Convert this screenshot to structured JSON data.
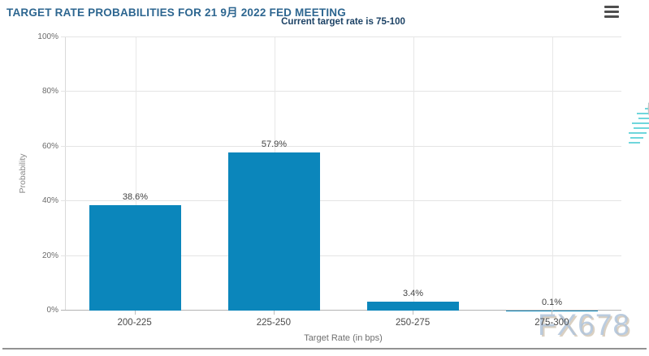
{
  "header": {
    "title": "TARGET RATE PROBABILITIES FOR 21 9月 2022 FED MEETING",
    "menu_icon": "hamburger-menu"
  },
  "chart_data": {
    "type": "bar",
    "title": "TARGET RATE PROBABILITIES FOR 21 9月 2022 FED MEETING",
    "subtitle": "Current target rate is 75-100",
    "xlabel": "Target Rate (in bps)",
    "ylabel": "Probability",
    "categories": [
      "200-225",
      "225-250",
      "250-275",
      "275-300"
    ],
    "values": [
      38.6,
      57.9,
      3.4,
      0.1
    ],
    "value_labels": [
      "38.6%",
      "57.9%",
      "3.4%",
      "0.1%"
    ],
    "ylim": [
      0,
      100
    ],
    "ytick_labels": [
      "0%",
      "20%",
      "40%",
      "60%",
      "80%",
      "100%"
    ],
    "grid": true,
    "legend": "none",
    "bar_color": "#0b86bb"
  },
  "watermarks": {
    "logo_letter": "Q",
    "brand": "FX678"
  },
  "colors": {
    "title_text": "#2d6690",
    "subtitle_text": "#1c4265",
    "bar": "#0b86bb",
    "gridline": "#e4e4e4",
    "zero_axis": "#b3b3b3",
    "logo_dash": "#6fd6dc",
    "brand_watermark": "#b0c4db"
  }
}
